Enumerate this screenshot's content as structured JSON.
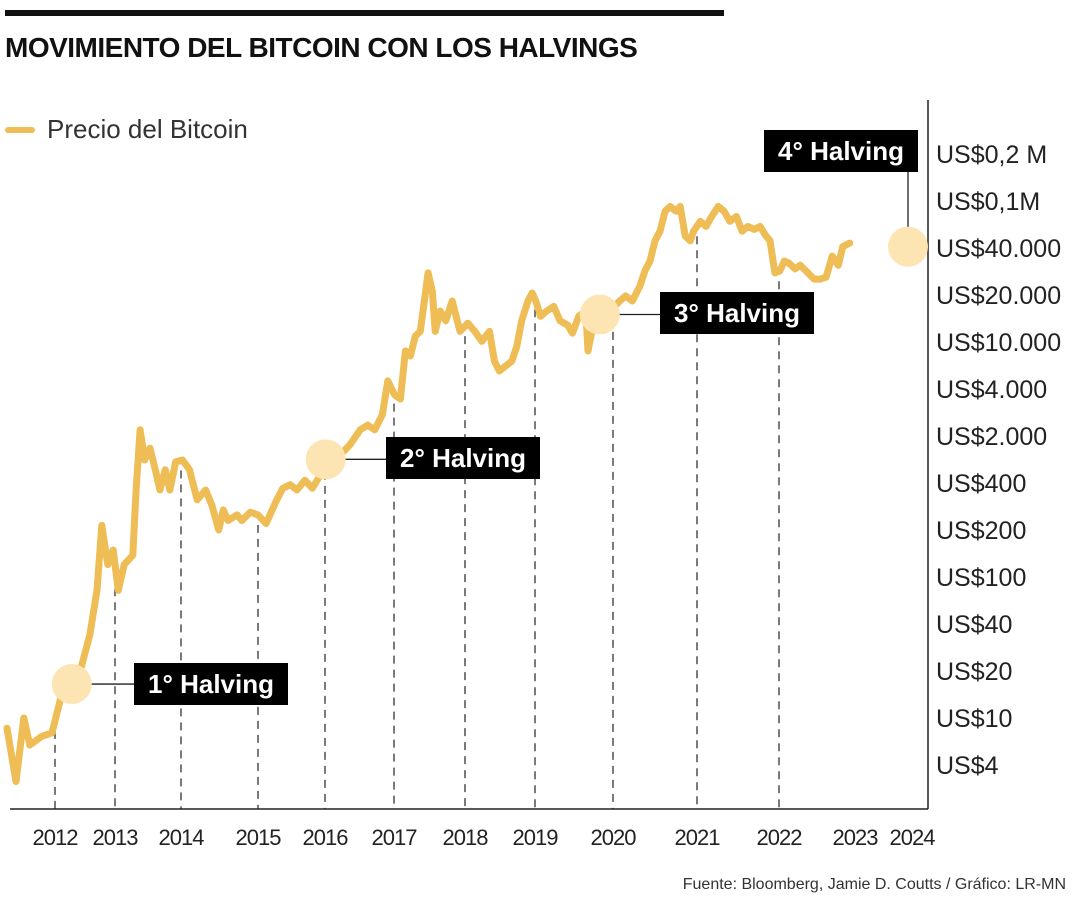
{
  "title": "MOVIMIENTO DEL BITCOIN CON LOS HALVINGS",
  "source": "Fuente: Bloomberg, Jamie D. Coutts / Gráfico: LR-MN",
  "colors": {
    "line": "#efbd55",
    "halving_marker": "#fde5b3",
    "label_bg": "#000000",
    "axis": "#222222"
  },
  "chart_data": {
    "type": "line",
    "title": "MOVIMIENTO DEL BITCOIN CON LOS HALVINGS",
    "xlabel": "",
    "ylabel": "",
    "y_scale": "log (uneven tick spacing)",
    "grid": "dashed vertical lines at each year",
    "legend_position": "top-left",
    "x_ticks": [
      "2012",
      "2013",
      "2014",
      "2015",
      "2016",
      "2017",
      "2018",
      "2019",
      "2020",
      "2021",
      "2022",
      "2023",
      "2024"
    ],
    "y_ticks": [
      {
        "label": "US$4",
        "value": 4
      },
      {
        "label": "US$10",
        "value": 10
      },
      {
        "label": "US$20",
        "value": 20
      },
      {
        "label": "US$40",
        "value": 40
      },
      {
        "label": "US$100",
        "value": 100
      },
      {
        "label": "US$200",
        "value": 200
      },
      {
        "label": "US$400",
        "value": 400
      },
      {
        "label": "US$2.000",
        "value": 2000
      },
      {
        "label": "US$4.000",
        "value": 4000
      },
      {
        "label": "US$10.000",
        "value": 10000
      },
      {
        "label": "US$20.000",
        "value": 20000
      },
      {
        "label": "US$40.000",
        "value": 40000
      },
      {
        "label": "US$0,1M",
        "value": 100000
      },
      {
        "label": "US$0,2 M",
        "value": 200000
      }
    ],
    "series": [
      {
        "name": "Precio del Bitcoin",
        "points": [
          [
            2011.2,
            8.2
          ],
          [
            2011.35,
            2.9
          ],
          [
            2011.48,
            10
          ],
          [
            2011.58,
            5.9
          ],
          [
            2011.78,
            7
          ],
          [
            2011.95,
            7.5
          ],
          [
            2012.12,
            14.6
          ],
          [
            2012.42,
            20
          ],
          [
            2012.58,
            34
          ],
          [
            2012.7,
            77
          ],
          [
            2012.78,
            214
          ],
          [
            2012.88,
            120
          ],
          [
            2012.97,
            149
          ],
          [
            2013.05,
            77
          ],
          [
            2013.14,
            120
          ],
          [
            2013.27,
            138
          ],
          [
            2013.32,
            361
          ],
          [
            2013.38,
            2190
          ],
          [
            2013.45,
            880
          ],
          [
            2013.53,
            1320
          ],
          [
            2013.61,
            630
          ],
          [
            2013.68,
            361
          ],
          [
            2013.76,
            630
          ],
          [
            2013.83,
            361
          ],
          [
            2013.92,
            825
          ],
          [
            2014.02,
            880
          ],
          [
            2014.11,
            630
          ],
          [
            2014.21,
            312
          ],
          [
            2014.32,
            361
          ],
          [
            2014.4,
            289
          ],
          [
            2014.49,
            200
          ],
          [
            2014.55,
            269
          ],
          [
            2014.61,
            230
          ],
          [
            2014.73,
            250
          ],
          [
            2014.79,
            230
          ],
          [
            2014.9,
            260
          ],
          [
            2015.0,
            250
          ],
          [
            2015.12,
            220
          ],
          [
            2015.28,
            312
          ],
          [
            2015.37,
            370
          ],
          [
            2015.48,
            390
          ],
          [
            2015.58,
            361
          ],
          [
            2015.7,
            440
          ],
          [
            2015.81,
            370
          ],
          [
            2015.93,
            525
          ],
          [
            2016.01,
            880
          ],
          [
            2016.22,
            1050
          ],
          [
            2016.36,
            1470
          ],
          [
            2016.51,
            2190
          ],
          [
            2016.62,
            2350
          ],
          [
            2016.72,
            2190
          ],
          [
            2016.83,
            2730
          ],
          [
            2016.91,
            4680
          ],
          [
            2017.01,
            3660
          ],
          [
            2017.09,
            3450
          ],
          [
            2017.16,
            8400
          ],
          [
            2017.23,
            7600
          ],
          [
            2017.3,
            10900
          ],
          [
            2017.37,
            11700
          ],
          [
            2017.48,
            27700
          ],
          [
            2017.54,
            21200
          ],
          [
            2017.58,
            11700
          ],
          [
            2017.65,
            15800
          ],
          [
            2017.73,
            13700
          ],
          [
            2017.82,
            18300
          ],
          [
            2017.93,
            11700
          ],
          [
            2018.04,
            13200
          ],
          [
            2018.14,
            11700
          ],
          [
            2018.24,
            10100
          ],
          [
            2018.35,
            11700
          ],
          [
            2018.42,
            6900
          ],
          [
            2018.49,
            5680
          ],
          [
            2018.58,
            6260
          ],
          [
            2018.67,
            6900
          ],
          [
            2018.74,
            9200
          ],
          [
            2018.81,
            13700
          ],
          [
            2018.9,
            18300
          ],
          [
            2018.96,
            20600
          ],
          [
            2019.01,
            18300
          ],
          [
            2019.07,
            14600
          ],
          [
            2019.15,
            15800
          ],
          [
            2019.24,
            16900
          ],
          [
            2019.32,
            13700
          ],
          [
            2019.42,
            12800
          ],
          [
            2019.48,
            11400
          ],
          [
            2019.56,
            14600
          ],
          [
            2019.65,
            15800
          ],
          [
            2019.68,
            8400
          ],
          [
            2019.73,
            11700
          ],
          [
            2019.83,
            14600
          ],
          [
            2019.96,
            15800
          ],
          [
            2020.08,
            18300
          ],
          [
            2020.15,
            19700
          ],
          [
            2020.23,
            18300
          ],
          [
            2020.32,
            22800
          ],
          [
            2020.38,
            28500
          ],
          [
            2020.44,
            33000
          ],
          [
            2020.5,
            46000
          ],
          [
            2020.56,
            55500
          ],
          [
            2020.62,
            82000
          ],
          [
            2020.68,
            90000
          ],
          [
            2020.75,
            82000
          ],
          [
            2020.8,
            90000
          ],
          [
            2020.86,
            50600
          ],
          [
            2020.92,
            46000
          ],
          [
            2020.96,
            55500
          ],
          [
            2021.04,
            67300
          ],
          [
            2021.11,
            61000
          ],
          [
            2021.18,
            74000
          ],
          [
            2021.26,
            90000
          ],
          [
            2021.33,
            82000
          ],
          [
            2021.4,
            67300
          ],
          [
            2021.48,
            74000
          ],
          [
            2021.55,
            55500
          ],
          [
            2021.62,
            61000
          ],
          [
            2021.7,
            57500
          ],
          [
            2021.77,
            61000
          ],
          [
            2021.84,
            50600
          ],
          [
            2021.89,
            46000
          ],
          [
            2021.95,
            27700
          ],
          [
            2022.01,
            28500
          ],
          [
            2022.07,
            33000
          ],
          [
            2022.13,
            32000
          ],
          [
            2022.21,
            29400
          ],
          [
            2022.28,
            31000
          ],
          [
            2022.38,
            27700
          ],
          [
            2022.46,
            25300
          ],
          [
            2022.54,
            25300
          ],
          [
            2022.62,
            26000
          ],
          [
            2022.7,
            35500
          ],
          [
            2022.78,
            31000
          ],
          [
            2022.84,
            41200
          ],
          [
            2022.93,
            44000
          ]
        ]
      }
    ],
    "halvings": [
      {
        "label": "1° Halving",
        "x": 2012.28,
        "y": 16.5
      },
      {
        "label": "2° Halving",
        "x": 2016.01,
        "y": 900
      },
      {
        "label": "3° Halving",
        "x": 2019.83,
        "y": 15000
      },
      {
        "label": "4° Halving",
        "x": 2023.93,
        "y": 41000
      }
    ]
  }
}
